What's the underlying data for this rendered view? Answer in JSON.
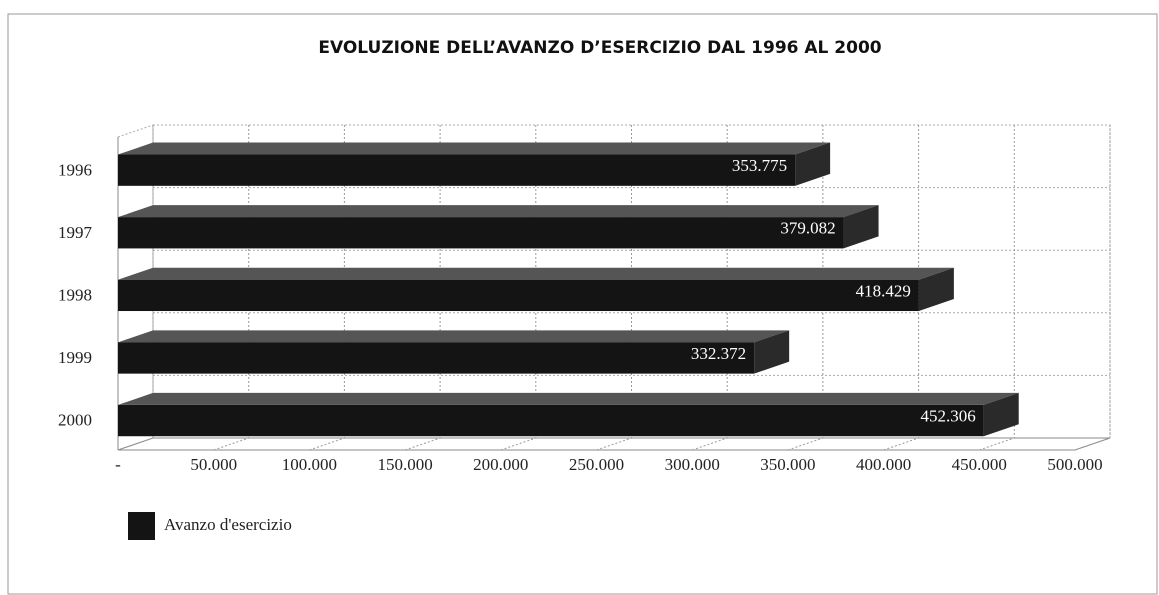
{
  "chart_data": {
    "type": "bar",
    "orientation": "horizontal",
    "title": "EVOLUZIONE DELL’AVANZO D’ESERCIZIO DAL 1996 AL 2000",
    "categories": [
      "1996",
      "1997",
      "1998",
      "1999",
      "2000"
    ],
    "series": [
      {
        "name": "Avanzo d'esercizio",
        "color": "#141414",
        "values": [
          353775,
          379082,
          418429,
          332372,
          452306
        ],
        "value_labels": [
          "353.775",
          "379.082",
          "418.429",
          "332.372",
          "452.306"
        ]
      }
    ],
    "xlim": [
      0,
      500000
    ],
    "xticks": [
      {
        "value": 0,
        "label": "-"
      },
      {
        "value": 50000,
        "label": "50.000"
      },
      {
        "value": 100000,
        "label": "100.000"
      },
      {
        "value": 150000,
        "label": "150.000"
      },
      {
        "value": 200000,
        "label": "200.000"
      },
      {
        "value": 250000,
        "label": "250.000"
      },
      {
        "value": 300000,
        "label": "300.000"
      },
      {
        "value": 350000,
        "label": "350.000"
      },
      {
        "value": 400000,
        "label": "400.000"
      },
      {
        "value": 450000,
        "label": "450.000"
      },
      {
        "value": 500000,
        "label": "500.000"
      }
    ],
    "grid": true,
    "legend": "bottom-left"
  }
}
